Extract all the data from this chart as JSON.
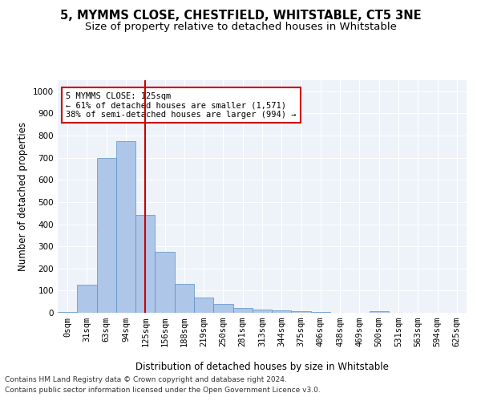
{
  "title1": "5, MYMMS CLOSE, CHESTFIELD, WHITSTABLE, CT5 3NE",
  "title2": "Size of property relative to detached houses in Whitstable",
  "xlabel": "Distribution of detached houses by size in Whitstable",
  "ylabel": "Number of detached properties",
  "bar_labels": [
    "0sqm",
    "31sqm",
    "63sqm",
    "94sqm",
    "125sqm",
    "156sqm",
    "188sqm",
    "219sqm",
    "250sqm",
    "281sqm",
    "313sqm",
    "344sqm",
    "375sqm",
    "406sqm",
    "438sqm",
    "469sqm",
    "500sqm",
    "531sqm",
    "563sqm",
    "594sqm",
    "625sqm"
  ],
  "bar_values": [
    5,
    125,
    700,
    775,
    440,
    275,
    130,
    70,
    40,
    22,
    15,
    10,
    8,
    2,
    1,
    0,
    8,
    0,
    0,
    0,
    0
  ],
  "bar_color": "#aec6e8",
  "bar_edge_color": "#5a8fc2",
  "vline_x": 4,
  "vline_color": "#cc0000",
  "annotation_text": "5 MYMMS CLOSE: 125sqm\n← 61% of detached houses are smaller (1,571)\n38% of semi-detached houses are larger (994) →",
  "annotation_box_color": "#cc0000",
  "ylim": [
    0,
    1050
  ],
  "yticks": [
    0,
    100,
    200,
    300,
    400,
    500,
    600,
    700,
    800,
    900,
    1000
  ],
  "bg_color": "#eef2f9",
  "grid_color": "#ffffff",
  "footnote1": "Contains HM Land Registry data © Crown copyright and database right 2024.",
  "footnote2": "Contains public sector information licensed under the Open Government Licence v3.0.",
  "title_fontsize": 10.5,
  "subtitle_fontsize": 9.5,
  "axis_label_fontsize": 8.5,
  "tick_fontsize": 7.5,
  "annot_fontsize": 7.5,
  "footnote_fontsize": 6.5
}
